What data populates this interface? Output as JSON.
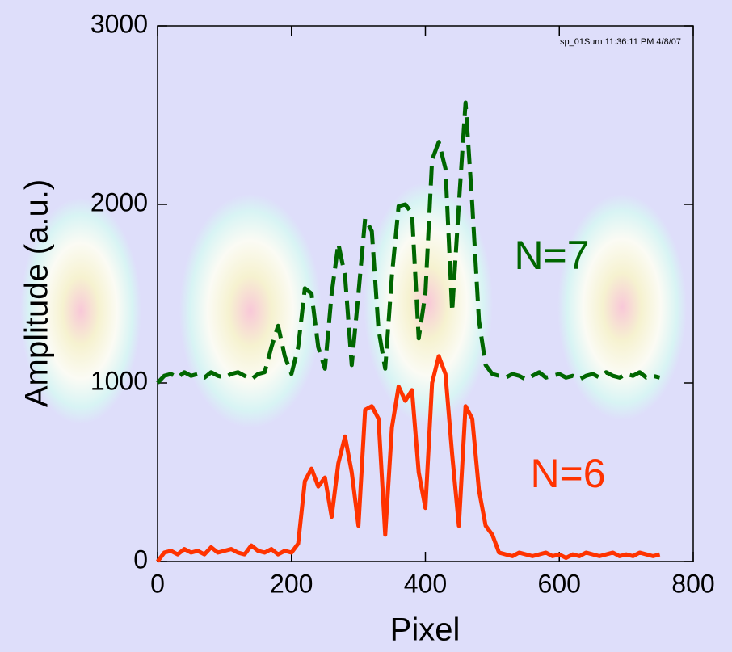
{
  "chart_data": {
    "type": "line",
    "x_label": "Pixel",
    "y_label": "Amplitude (a.u.)",
    "stamp": "sp_01Sum 11:36:11 PM 4/8/07",
    "annotations": [
      {
        "text": "N=7",
        "color": "#006600"
      },
      {
        "text": "N=6",
        "color": "#ff3300"
      }
    ],
    "x": [
      0,
      10,
      20,
      30,
      40,
      50,
      60,
      70,
      80,
      90,
      100,
      110,
      120,
      130,
      140,
      150,
      160,
      170,
      180,
      190,
      200,
      210,
      220,
      230,
      240,
      250,
      260,
      270,
      280,
      290,
      300,
      310,
      320,
      330,
      340,
      350,
      360,
      370,
      380,
      390,
      400,
      410,
      420,
      430,
      440,
      450,
      460,
      470,
      480,
      490,
      500,
      510,
      520,
      530,
      540,
      550,
      560,
      570,
      580,
      590,
      600,
      610,
      620,
      630,
      640,
      650,
      660,
      670,
      680,
      690,
      700,
      710,
      720,
      730,
      740,
      750
    ],
    "series": [
      {
        "name": "N=7",
        "color": "#006600",
        "dashed": true,
        "values": [
          1000,
          1040,
          1050,
          1030,
          1060,
          1040,
          1050,
          1030,
          1060,
          1040,
          1030,
          1050,
          1060,
          1040,
          1020,
          1050,
          1060,
          1200,
          1320,
          1150,
          1050,
          1200,
          1530,
          1500,
          1200,
          1080,
          1500,
          1780,
          1600,
          1100,
          1500,
          1920,
          1850,
          1300,
          1080,
          1600,
          1990,
          2000,
          1950,
          1250,
          1500,
          2250,
          2350,
          2200,
          1400,
          2000,
          2570,
          2000,
          1350,
          1100,
          1050,
          1040,
          1030,
          1050,
          1040,
          1020,
          1040,
          1060,
          1030,
          1040,
          1050,
          1030,
          1040,
          1020,
          1040,
          1050,
          1030,
          1060,
          1040,
          1030,
          1050,
          1040,
          1060,
          1030,
          1040,
          1030
        ]
      },
      {
        "name": "N=6",
        "color": "#ff3300",
        "dashed": false,
        "values": [
          0,
          50,
          60,
          40,
          70,
          50,
          60,
          40,
          80,
          50,
          60,
          70,
          50,
          40,
          90,
          60,
          50,
          70,
          40,
          60,
          50,
          100,
          450,
          520,
          420,
          470,
          250,
          550,
          700,
          500,
          200,
          850,
          870,
          800,
          150,
          750,
          980,
          900,
          960,
          500,
          300,
          1000,
          1150,
          1050,
          600,
          200,
          870,
          800,
          400,
          200,
          150,
          50,
          40,
          30,
          50,
          40,
          30,
          40,
          50,
          30,
          40,
          20,
          40,
          30,
          50,
          40,
          30,
          40,
          50,
          30,
          40,
          30,
          50,
          40,
          30,
          40
        ]
      }
    ],
    "xlim": [
      0,
      800
    ],
    "xticks": [
      0,
      200,
      400,
      600,
      800
    ],
    "ylim": [
      0,
      3000
    ],
    "yticks": [
      0,
      1000,
      2000,
      3000
    ]
  }
}
